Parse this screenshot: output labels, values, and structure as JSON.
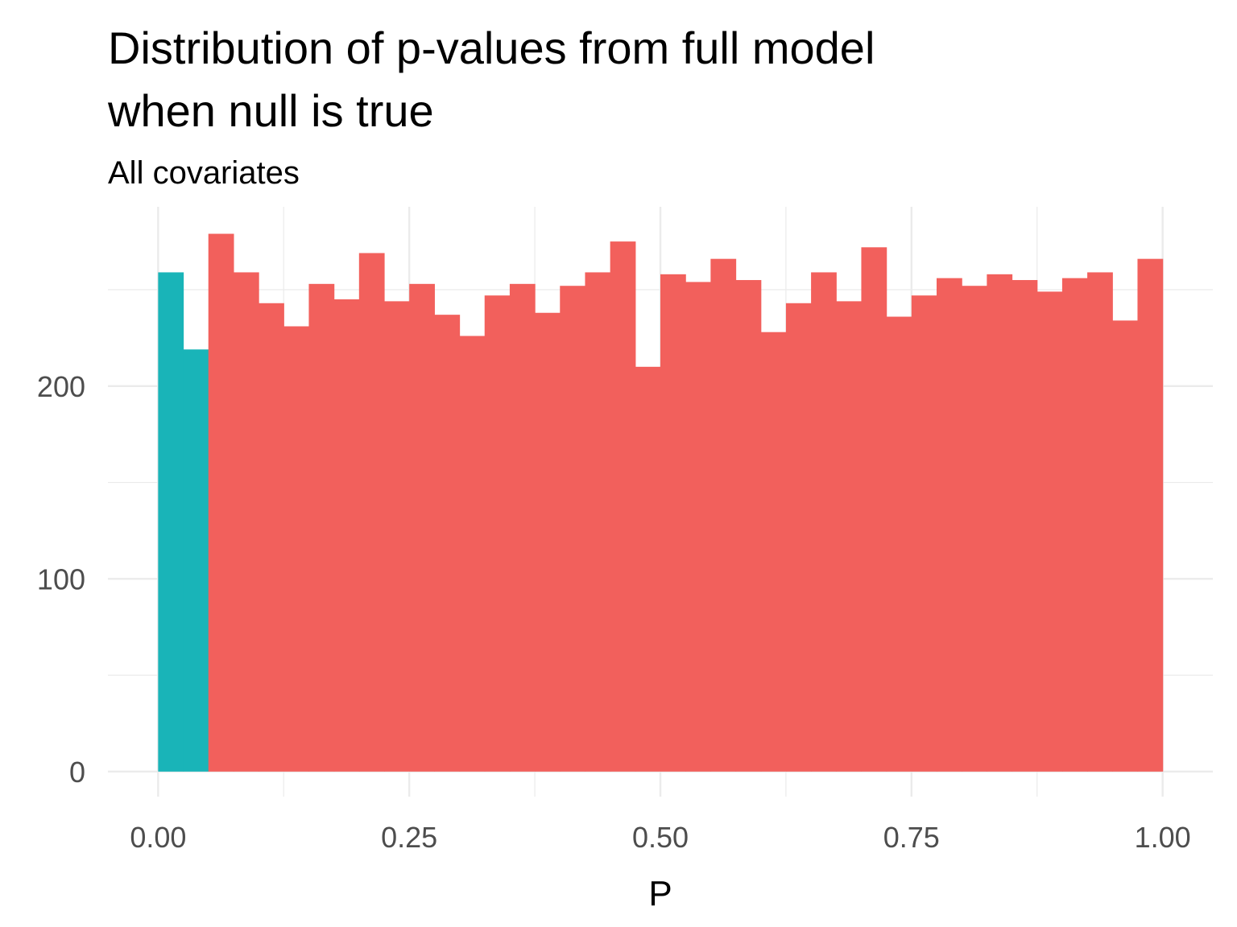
{
  "chart_data": {
    "type": "bar",
    "subtype": "histogram",
    "title_lines": [
      "Distribution of p-values from full model",
      "when null is true"
    ],
    "subtitle": "All covariates",
    "xlabel": "P",
    "ylabel": "",
    "x_ticks": [
      {
        "value": 0.0,
        "label": "0.00"
      },
      {
        "value": 0.25,
        "label": "0.25"
      },
      {
        "value": 0.5,
        "label": "0.50"
      },
      {
        "value": 0.75,
        "label": "0.75"
      },
      {
        "value": 1.0,
        "label": "1.00"
      }
    ],
    "y_ticks": [
      {
        "value": 0,
        "label": "0"
      },
      {
        "value": 100,
        "label": "100"
      },
      {
        "value": 200,
        "label": "200"
      }
    ],
    "xlim": [
      -0.05,
      1.05
    ],
    "ylim": [
      -13,
      293
    ],
    "grid": true,
    "legend": "none",
    "colors": {
      "significant": "#19B4B8",
      "not_significant": "#F2605C",
      "grid": "#EBEBEB",
      "tick_text": "#4D4D4D",
      "title_text": "#000000"
    },
    "bin_width": 0.025,
    "bins": [
      {
        "x0": 0.0,
        "x1": 0.025,
        "count": 259,
        "group": "significant"
      },
      {
        "x0": 0.025,
        "x1": 0.05,
        "count": 219,
        "group": "significant"
      },
      {
        "x0": 0.05,
        "x1": 0.075,
        "count": 279,
        "group": "not_significant"
      },
      {
        "x0": 0.075,
        "x1": 0.1,
        "count": 259,
        "group": "not_significant"
      },
      {
        "x0": 0.1,
        "x1": 0.125,
        "count": 243,
        "group": "not_significant"
      },
      {
        "x0": 0.125,
        "x1": 0.15,
        "count": 231,
        "group": "not_significant"
      },
      {
        "x0": 0.15,
        "x1": 0.175,
        "count": 253,
        "group": "not_significant"
      },
      {
        "x0": 0.175,
        "x1": 0.2,
        "count": 245,
        "group": "not_significant"
      },
      {
        "x0": 0.2,
        "x1": 0.225,
        "count": 269,
        "group": "not_significant"
      },
      {
        "x0": 0.225,
        "x1": 0.25,
        "count": 244,
        "group": "not_significant"
      },
      {
        "x0": 0.25,
        "x1": 0.275,
        "count": 253,
        "group": "not_significant"
      },
      {
        "x0": 0.275,
        "x1": 0.3,
        "count": 237,
        "group": "not_significant"
      },
      {
        "x0": 0.3,
        "x1": 0.325,
        "count": 226,
        "group": "not_significant"
      },
      {
        "x0": 0.325,
        "x1": 0.35,
        "count": 247,
        "group": "not_significant"
      },
      {
        "x0": 0.35,
        "x1": 0.375,
        "count": 253,
        "group": "not_significant"
      },
      {
        "x0": 0.375,
        "x1": 0.4,
        "count": 238,
        "group": "not_significant"
      },
      {
        "x0": 0.4,
        "x1": 0.425,
        "count": 252,
        "group": "not_significant"
      },
      {
        "x0": 0.425,
        "x1": 0.45,
        "count": 259,
        "group": "not_significant"
      },
      {
        "x0": 0.45,
        "x1": 0.475,
        "count": 275,
        "group": "not_significant"
      },
      {
        "x0": 0.475,
        "x1": 0.5,
        "count": 210,
        "group": "not_significant"
      },
      {
        "x0": 0.5,
        "x1": 0.525,
        "count": 258,
        "group": "not_significant"
      },
      {
        "x0": 0.525,
        "x1": 0.55,
        "count": 254,
        "group": "not_significant"
      },
      {
        "x0": 0.55,
        "x1": 0.575,
        "count": 266,
        "group": "not_significant"
      },
      {
        "x0": 0.575,
        "x1": 0.6,
        "count": 255,
        "group": "not_significant"
      },
      {
        "x0": 0.6,
        "x1": 0.625,
        "count": 228,
        "group": "not_significant"
      },
      {
        "x0": 0.625,
        "x1": 0.65,
        "count": 243,
        "group": "not_significant"
      },
      {
        "x0": 0.65,
        "x1": 0.675,
        "count": 259,
        "group": "not_significant"
      },
      {
        "x0": 0.675,
        "x1": 0.7,
        "count": 244,
        "group": "not_significant"
      },
      {
        "x0": 0.7,
        "x1": 0.725,
        "count": 272,
        "group": "not_significant"
      },
      {
        "x0": 0.725,
        "x1": 0.75,
        "count": 236,
        "group": "not_significant"
      },
      {
        "x0": 0.75,
        "x1": 0.775,
        "count": 247,
        "group": "not_significant"
      },
      {
        "x0": 0.775,
        "x1": 0.8,
        "count": 256,
        "group": "not_significant"
      },
      {
        "x0": 0.8,
        "x1": 0.825,
        "count": 252,
        "group": "not_significant"
      },
      {
        "x0": 0.825,
        "x1": 0.85,
        "count": 258,
        "group": "not_significant"
      },
      {
        "x0": 0.85,
        "x1": 0.875,
        "count": 255,
        "group": "not_significant"
      },
      {
        "x0": 0.875,
        "x1": 0.9,
        "count": 249,
        "group": "not_significant"
      },
      {
        "x0": 0.9,
        "x1": 0.925,
        "count": 256,
        "group": "not_significant"
      },
      {
        "x0": 0.925,
        "x1": 0.95,
        "count": 259,
        "group": "not_significant"
      },
      {
        "x0": 0.95,
        "x1": 0.975,
        "count": 234,
        "group": "not_significant"
      },
      {
        "x0": 0.975,
        "x1": 1.0,
        "count": 266,
        "group": "not_significant"
      }
    ]
  }
}
